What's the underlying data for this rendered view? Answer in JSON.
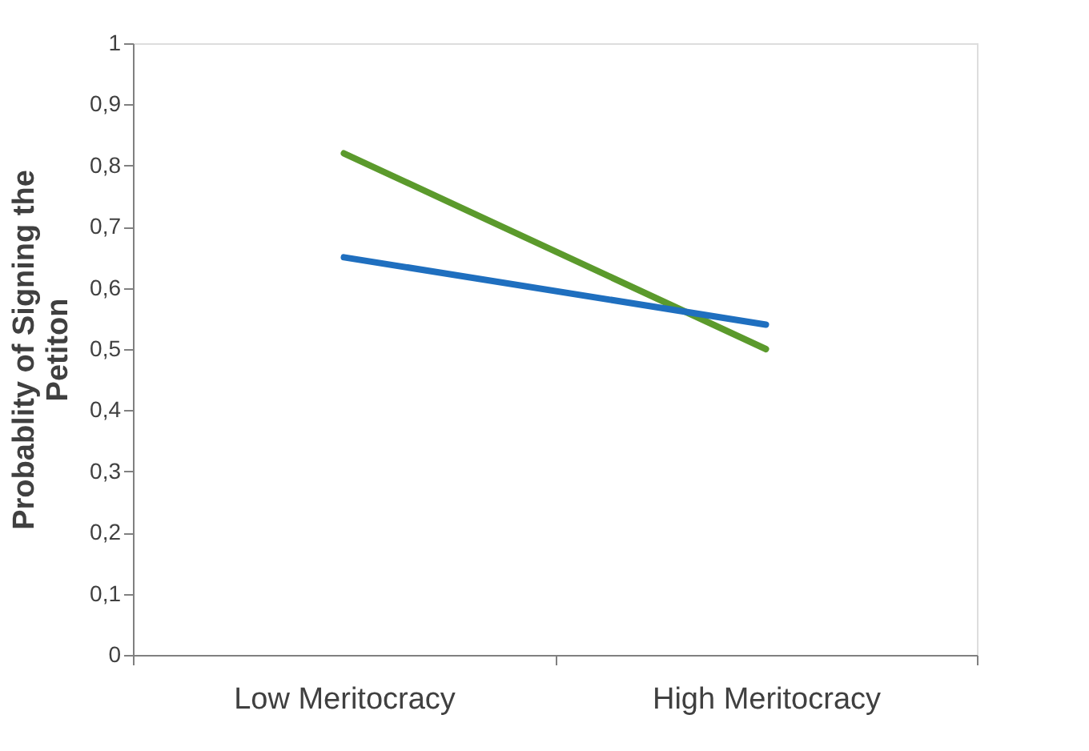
{
  "chart_data": {
    "type": "line",
    "ylabel": "Probablity of Signing the Petiton",
    "categories": [
      "Low Meritocracy",
      "High Meritocracy"
    ],
    "series": [
      {
        "color": "#5b9a2c",
        "values": [
          0.82,
          0.5
        ]
      },
      {
        "color": "#1f6fbf",
        "values": [
          0.65,
          0.54
        ]
      }
    ],
    "ylim": [
      0,
      1
    ],
    "yticks": [
      0,
      {
        "value": 0.1,
        "label": "0,1"
      },
      {
        "value": 0.2,
        "label": "0,2"
      },
      {
        "value": 0.3,
        "label": "0,3"
      },
      {
        "value": 0.4,
        "label": "0,4"
      },
      {
        "value": 0.5,
        "label": "0,5"
      },
      {
        "value": 0.6,
        "label": "0,6"
      },
      {
        "value": 0.7,
        "label": "0,7"
      },
      {
        "value": 0.8,
        "label": "0,8"
      },
      {
        "value": 0.9,
        "label": "0,9"
      },
      1
    ],
    "grid": false,
    "legend": false,
    "marker": "none",
    "line_style": "solid"
  }
}
